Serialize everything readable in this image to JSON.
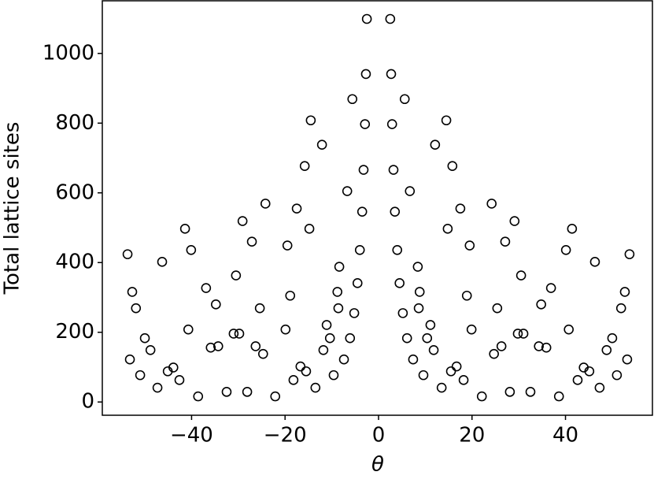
{
  "chart_data": {
    "type": "scatter",
    "xlabel": "θ",
    "ylabel": "Total lattice sites",
    "x": [
      -53.7,
      -53.2,
      -52.7,
      -51.9,
      -51.0,
      -50.0,
      -48.8,
      -47.3,
      -46.3,
      -45.1,
      -43.9,
      -42.6,
      -41.4,
      -40.1,
      -40.7,
      -38.6,
      -36.9,
      -35.9,
      -34.8,
      -34.3,
      -32.5,
      -31.0,
      -29.8,
      -30.5,
      -29.1,
      -28.1,
      -27.1,
      -26.3,
      -25.4,
      -24.7,
      -24.2,
      -22.1,
      -19.9,
      -19.5,
      -18.9,
      -18.2,
      -17.5,
      -16.7,
      -15.8,
      -15.5,
      -14.8,
      -14.5,
      -13.5,
      -12.1,
      -11.8,
      -11.1,
      -10.4,
      -9.6,
      -8.8,
      -8.4,
      -8.6,
      -7.4,
      -6.7,
      -6.1,
      -5.6,
      -5.2,
      -4.5,
      -4.0,
      -3.5,
      -3.2,
      -2.9,
      -2.7,
      -2.5,
      53.7,
      53.2,
      52.7,
      51.9,
      51.0,
      50.0,
      48.8,
      47.3,
      46.3,
      45.1,
      43.9,
      42.6,
      41.4,
      40.1,
      40.7,
      38.6,
      36.9,
      35.9,
      34.8,
      34.3,
      32.5,
      31.0,
      29.8,
      30.5,
      29.1,
      28.1,
      27.1,
      26.3,
      25.4,
      24.7,
      24.2,
      22.1,
      19.9,
      19.5,
      18.9,
      18.2,
      17.5,
      16.7,
      15.8,
      15.5,
      14.8,
      14.5,
      13.5,
      12.1,
      11.8,
      11.1,
      10.4,
      9.6,
      8.8,
      8.4,
      8.6,
      7.4,
      6.7,
      6.1,
      5.6,
      5.2,
      4.5,
      4.0,
      3.5,
      3.2,
      2.9,
      2.7,
      2.5
    ],
    "values": [
      424,
      122,
      316,
      269,
      77,
      183,
      149,
      41,
      402,
      88,
      99,
      63,
      497,
      436,
      208,
      16,
      327,
      156,
      280,
      160,
      29,
      196,
      196,
      363,
      519,
      29,
      460,
      160,
      269,
      138,
      569,
      16,
      208,
      449,
      305,
      63,
      555,
      102,
      677,
      88,
      497,
      808,
      41,
      738,
      149,
      221,
      183,
      77,
      316,
      388,
      269,
      122,
      605,
      183,
      869,
      255,
      341,
      436,
      546,
      666,
      797,
      941,
      1099,
      424,
      122,
      316,
      269,
      77,
      183,
      149,
      41,
      402,
      88,
      99,
      63,
      497,
      436,
      208,
      16,
      327,
      156,
      280,
      160,
      29,
      196,
      196,
      363,
      519,
      29,
      460,
      160,
      269,
      138,
      569,
      16,
      208,
      449,
      305,
      63,
      555,
      102,
      677,
      88,
      497,
      808,
      41,
      738,
      149,
      221,
      183,
      77,
      316,
      388,
      269,
      122,
      605,
      183,
      869,
      255,
      341,
      436,
      546,
      666,
      797,
      941,
      1099
    ],
    "color": "#000000",
    "xlim": [
      -59.1,
      58.6
    ],
    "ylim": [
      -38,
      1151
    ],
    "xticks": [
      {
        "value": -40,
        "label": "−40"
      },
      {
        "value": -20,
        "label": "−20"
      },
      0,
      20,
      40
    ],
    "yticks": [
      0,
      200,
      400,
      600,
      800,
      1000
    ]
  }
}
